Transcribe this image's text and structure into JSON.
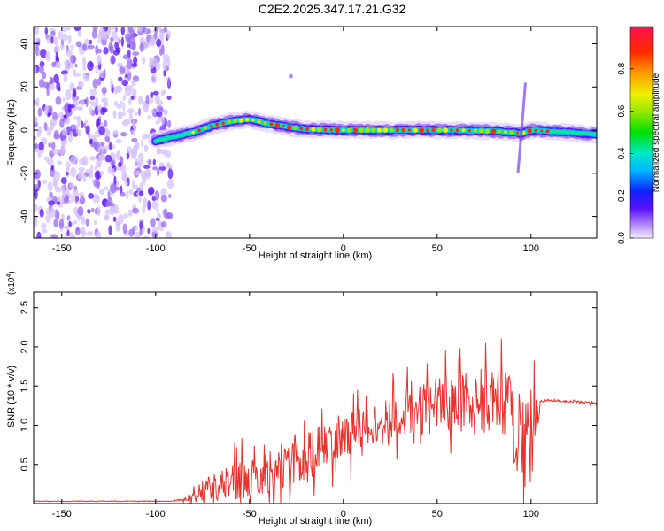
{
  "title": "C2E2.2025.347.17.21.G32",
  "chart_data": [
    {
      "type": "heatmap",
      "xlabel": "Height of straight line (km)",
      "ylabel": "Frequency (Hz)",
      "xlim": [
        -165,
        135
      ],
      "ylim": [
        -50,
        48
      ],
      "x_ticks": [
        -150,
        -100,
        -50,
        0,
        50,
        100
      ],
      "y_ticks": [
        -40,
        -20,
        0,
        20,
        40
      ],
      "colorbar": {
        "label": "Normalized spectral amplitude",
        "range": [
          0,
          1
        ],
        "ticks": [
          "0.0",
          "0.2",
          "0.4",
          "0.6",
          "0.8"
        ]
      },
      "ridge": {
        "x": [
          -100,
          -90,
          -80,
          -70,
          -60,
          -50,
          -40,
          -30,
          -20,
          -10,
          0,
          20,
          40,
          60,
          80,
          90,
          95,
          100,
          110,
          120,
          135
        ],
        "frequency": [
          -5,
          -3,
          -1,
          2,
          4,
          5,
          3,
          1.5,
          0.5,
          0.2,
          0,
          0,
          0,
          0,
          -0.5,
          -1,
          -1.5,
          0,
          -0.5,
          -1,
          -2
        ]
      }
    },
    {
      "type": "line",
      "xlabel": "Height of straight line (km)",
      "ylabel": "SNR (10 * v/v)",
      "y_multiplier": "(x10",
      "y_multiplier_exp": "4",
      "y_multiplier_close": ")",
      "xlim": [
        -165,
        135
      ],
      "ylim": [
        0,
        2.7
      ],
      "x_ticks": [
        -150,
        -100,
        -50,
        0,
        50,
        100
      ],
      "y_ticks": [
        0.5,
        1.0,
        1.5,
        2.0,
        2.5
      ],
      "series": [
        {
          "name": "SNR",
          "color": "#e8322c",
          "x": [
            -165,
            -120,
            -95,
            -85,
            -80,
            -75,
            -70,
            -65,
            -60,
            -55,
            -50,
            -45,
            -40,
            -35,
            -30,
            -25,
            -20,
            -15,
            -10,
            -5,
            0,
            10,
            20,
            30,
            40,
            50,
            60,
            70,
            80,
            85,
            90,
            95,
            100,
            103,
            105,
            110,
            120,
            135
          ],
          "mean": [
            0.03,
            0.03,
            0.03,
            0.05,
            0.1,
            0.18,
            0.22,
            0.25,
            0.3,
            0.28,
            0.3,
            0.35,
            0.4,
            0.45,
            0.5,
            0.55,
            0.62,
            0.7,
            0.75,
            0.82,
            0.88,
            0.95,
            1.02,
            1.1,
            1.18,
            1.25,
            1.3,
            1.32,
            1.3,
            1.25,
            1.1,
            0.9,
            0.8,
            1.0,
            1.3,
            1.32,
            1.3,
            1.29
          ],
          "spread": [
            0.0,
            0.0,
            0.0,
            0.03,
            0.08,
            0.2,
            0.25,
            0.3,
            0.35,
            0.35,
            0.35,
            0.35,
            0.4,
            0.45,
            0.5,
            0.5,
            0.5,
            0.4,
            0.4,
            0.4,
            0.4,
            0.4,
            0.4,
            0.4,
            0.45,
            0.5,
            0.55,
            0.6,
            0.6,
            0.65,
            0.8,
            0.9,
            1.0,
            0.3,
            0.03,
            0.02,
            0.02,
            0.02
          ]
        }
      ]
    }
  ]
}
